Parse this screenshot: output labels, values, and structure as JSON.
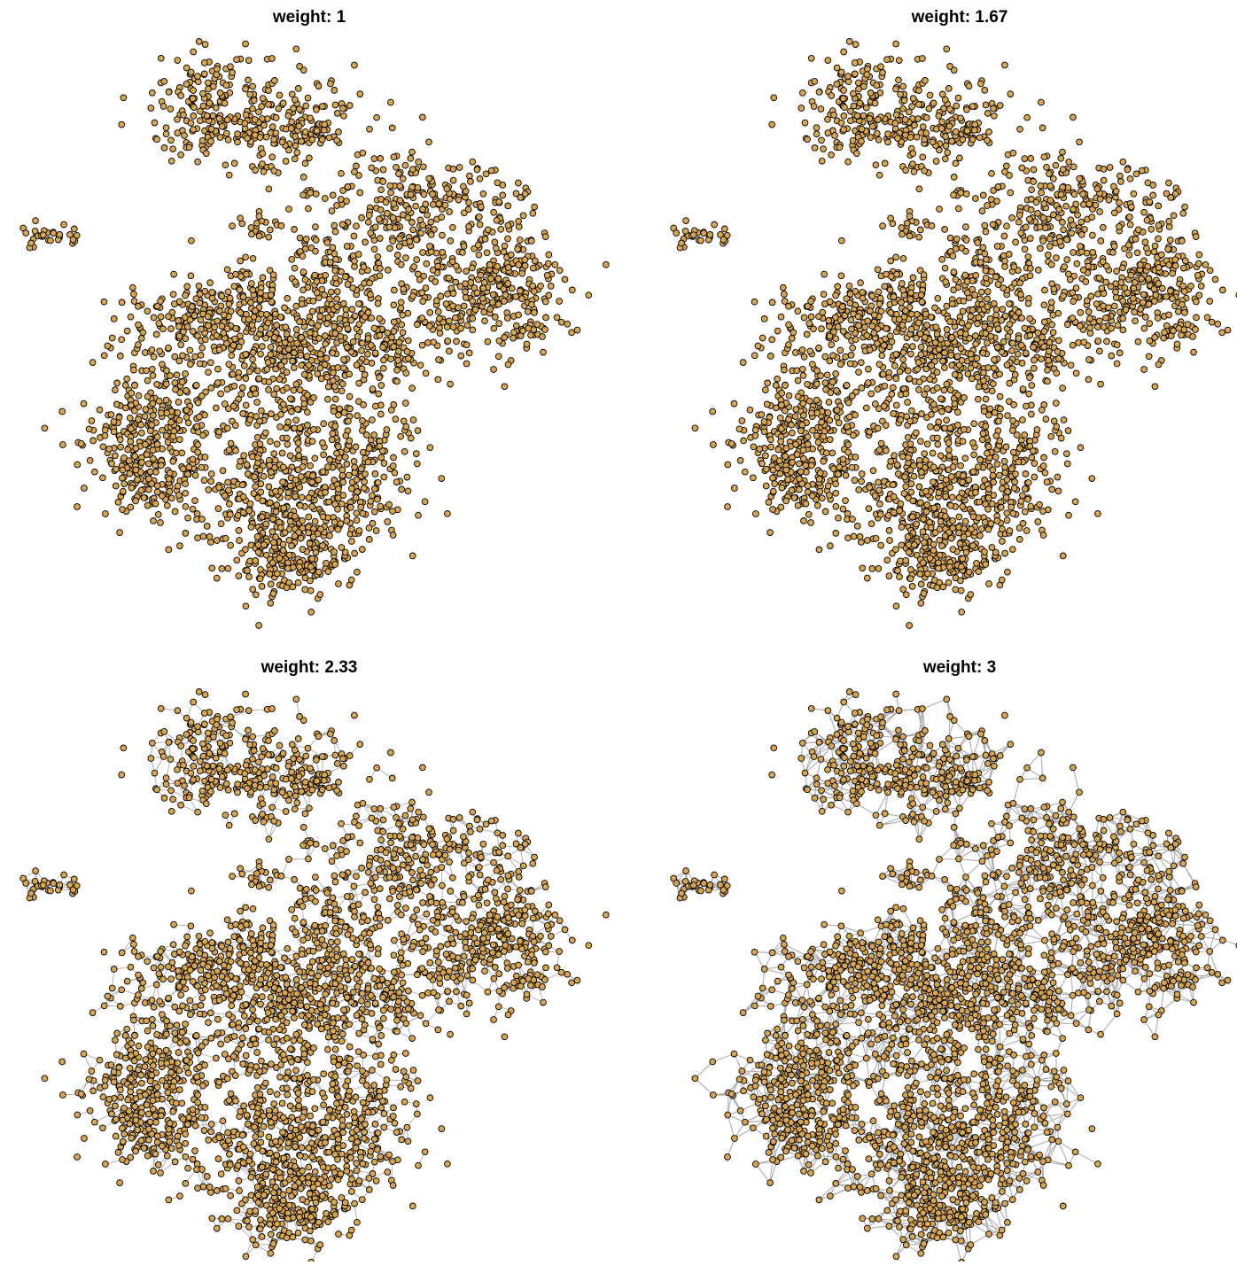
{
  "chart_data": [
    {
      "type": "scatter",
      "title": "weight: 1",
      "weight": 1,
      "edges_visible": false,
      "axes_visible": false,
      "point_color": "#D9A650",
      "point_stroke": "#000000",
      "edge_color": "#ADADAD"
    },
    {
      "type": "scatter",
      "title": "weight: 1.67",
      "weight": 1.67,
      "edges_visible": false,
      "axes_visible": false,
      "point_color": "#D9A650",
      "point_stroke": "#000000",
      "edge_color": "#ADADAD"
    },
    {
      "type": "scatter",
      "title": "weight: 2.33",
      "weight": 2.33,
      "edges_visible": true,
      "axes_visible": false,
      "point_color": "#D9A650",
      "point_stroke": "#000000",
      "edge_color": "#ADADAD"
    },
    {
      "type": "scatter",
      "title": "weight: 3",
      "weight": 3,
      "edges_visible": true,
      "axes_visible": false,
      "point_color": "#D9A650",
      "point_stroke": "#000000",
      "edge_color": "#ADADAD"
    }
  ]
}
